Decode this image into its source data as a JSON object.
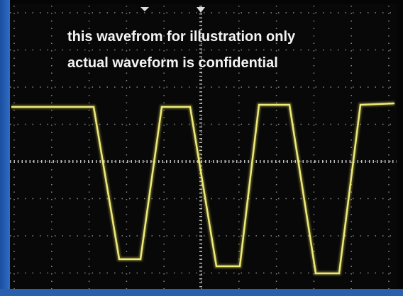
{
  "annotation": {
    "line1": "this wavefrom for illustration only",
    "line2": "actual waveform is confidential"
  }
}
